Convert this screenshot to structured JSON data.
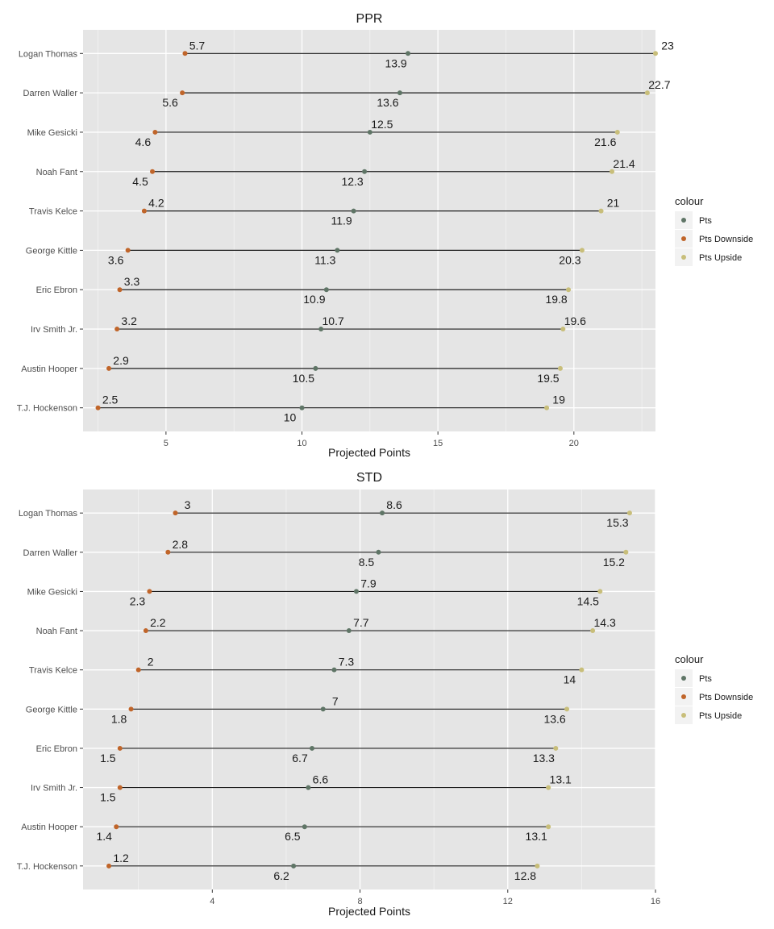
{
  "colors": {
    "Pts": "#5f7566",
    "Pts Downside": "#c0652a",
    "Pts Upside": "#c8be7a",
    "panel": "#e5e5e5",
    "grid": "#ffffff",
    "segment": "#1a1a1a"
  },
  "chart_data": [
    {
      "type": "dumbbell",
      "title": "PPR",
      "xlabel": "Projected Points",
      "ylabel": "",
      "xlim": [
        1.95,
        23.0
      ],
      "x_ticks": [
        5,
        10,
        15,
        20
      ],
      "grid": true,
      "legend": {
        "title": "colour",
        "position": "right",
        "entries": [
          "Pts",
          "Pts Downside",
          "Pts Upside"
        ]
      },
      "categories": [
        "Logan Thomas",
        "Darren Waller",
        "Mike Gesicki",
        "Noah Fant",
        "Travis Kelce",
        "George Kittle",
        "Eric Ebron",
        "Irv Smith Jr.",
        "Austin Hooper",
        "T.J. Hockenson"
      ],
      "series": [
        {
          "name": "Pts Downside",
          "values": [
            5.7,
            5.6,
            4.6,
            4.5,
            4.2,
            3.6,
            3.3,
            3.2,
            2.9,
            2.5
          ]
        },
        {
          "name": "Pts",
          "values": [
            13.9,
            13.6,
            12.5,
            12.3,
            11.9,
            11.3,
            10.9,
            10.7,
            10.5,
            10
          ]
        },
        {
          "name": "Pts Upside",
          "values": [
            23,
            22.7,
            21.6,
            21.4,
            21,
            20.3,
            19.8,
            19.6,
            19.5,
            19
          ]
        }
      ],
      "data_labels": {
        "Pts Downside": [
          "5.7",
          "5.6",
          "4.6",
          "4.5",
          "4.2",
          "3.6",
          "3.3",
          "3.2",
          "2.9",
          "2.5"
        ],
        "Pts": [
          "13.9",
          "13.6",
          "12.5",
          "12.3",
          "11.9",
          "11.3",
          "10.9",
          "10.7",
          "10.5",
          "10"
        ],
        "Pts Upside": [
          "23",
          "22.7",
          "21.6",
          "21.4",
          "21",
          "20.3",
          "19.8",
          "19.6",
          "19.5",
          "19"
        ]
      }
    },
    {
      "type": "dumbbell",
      "title": "STD",
      "xlabel": "Projected Points",
      "ylabel": "",
      "xlim": [
        0.5,
        16.0
      ],
      "x_ticks": [
        4,
        8,
        12,
        16
      ],
      "grid": true,
      "legend": {
        "title": "colour",
        "position": "right",
        "entries": [
          "Pts",
          "Pts Downside",
          "Pts Upside"
        ]
      },
      "categories": [
        "Logan Thomas",
        "Darren Waller",
        "Mike Gesicki",
        "Noah Fant",
        "Travis Kelce",
        "George Kittle",
        "Eric Ebron",
        "Irv Smith Jr.",
        "Austin Hooper",
        "T.J. Hockenson"
      ],
      "series": [
        {
          "name": "Pts Downside",
          "values": [
            3,
            2.8,
            2.3,
            2.2,
            2,
            1.8,
            1.5,
            1.5,
            1.4,
            1.2
          ]
        },
        {
          "name": "Pts",
          "values": [
            8.6,
            8.5,
            7.9,
            7.7,
            7.3,
            7,
            6.7,
            6.6,
            6.5,
            6.2
          ]
        },
        {
          "name": "Pts Upside",
          "values": [
            15.3,
            15.2,
            14.5,
            14.3,
            14,
            13.6,
            13.3,
            13.1,
            13.1,
            12.8
          ]
        }
      ],
      "data_labels": {
        "Pts Downside": [
          "3",
          "2.8",
          "2.3",
          "2.2",
          "2",
          "1.8",
          "1.5",
          "1.5",
          "1.4",
          "1.2"
        ],
        "Pts": [
          "8.6",
          "8.5",
          "7.9",
          "7.7",
          "7.3",
          "7",
          "6.7",
          "6.6",
          "6.5",
          "6.2"
        ],
        "Pts Upside": [
          "15.3",
          "15.2",
          "14.5",
          "14.3",
          "14",
          "13.6",
          "13.3",
          "13.1",
          "13.1",
          "12.8"
        ]
      }
    }
  ]
}
